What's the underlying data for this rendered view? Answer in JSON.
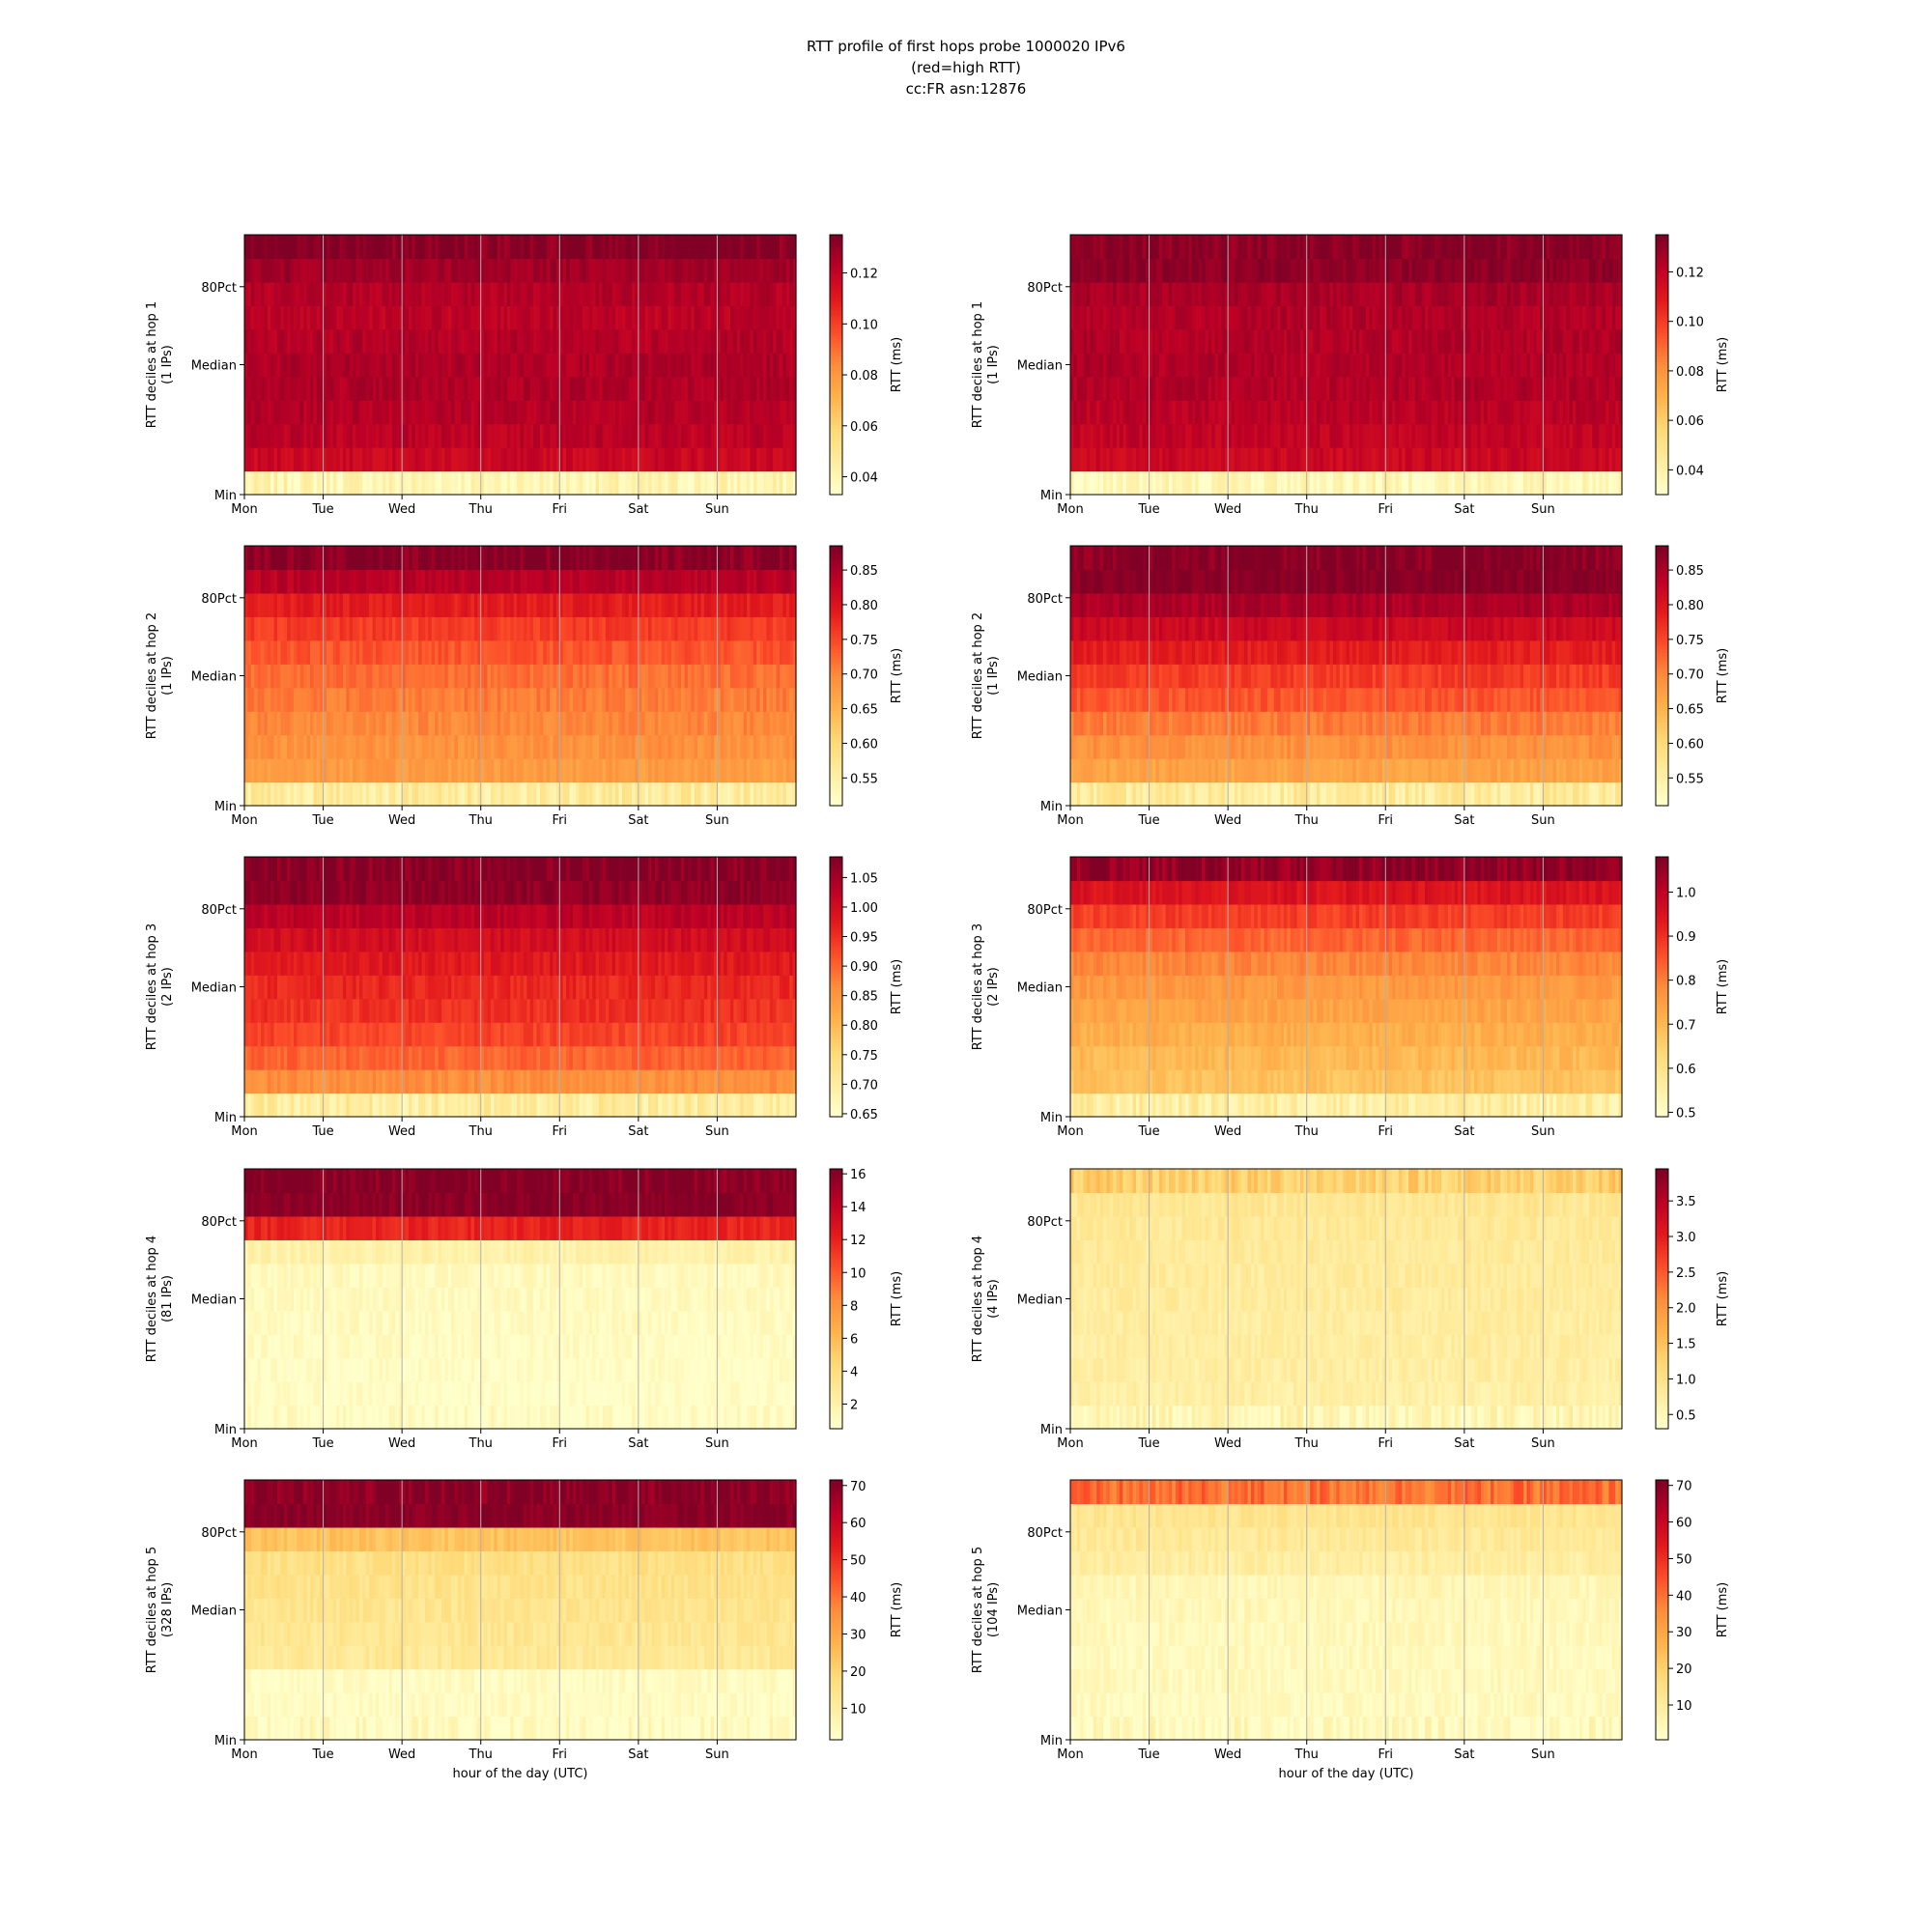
{
  "title": {
    "line1": "RTT profile of first hops probe 1000020 IPv6",
    "line2": "(red=high RTT)",
    "line3": "cc:FR asn:12876"
  },
  "colormap": {
    "name": "YlOrRd",
    "stops": [
      "#ffffcc",
      "#ffeda0",
      "#fed976",
      "#feb24c",
      "#fd8d3c",
      "#fc4e2a",
      "#e31a1c",
      "#bd0026",
      "#800026"
    ]
  },
  "chart_data": [
    {
      "type": "heatmap",
      "hop": 1,
      "ylabel": "RTT deciles at hop 1",
      "ips": "(1 IPs)",
      "xticks": [
        "Mon",
        "Tue",
        "Wed",
        "Thu",
        "Fri",
        "Sat",
        "Sun"
      ],
      "xlabel": "",
      "yticks": [
        "Min",
        "Median",
        "80Pct"
      ],
      "colorbar": {
        "label": "RTT (ms)",
        "vmin": 0.033,
        "vmax": 0.135,
        "ticks": [
          "0.04",
          "0.06",
          "0.08",
          "0.10",
          "0.12"
        ]
      },
      "decile_rtt_ms": [
        0.04,
        0.118,
        0.122,
        0.124,
        0.125,
        0.125,
        0.124,
        0.122,
        0.124,
        0.128,
        0.135
      ]
    },
    {
      "type": "heatmap",
      "hop": 1,
      "ylabel": "RTT deciles at hop 1",
      "ips": "(1 IPs)",
      "xticks": [
        "Mon",
        "Tue",
        "Wed",
        "Thu",
        "Fri",
        "Sat",
        "Sun"
      ],
      "xlabel": "",
      "yticks": [
        "Min",
        "Median",
        "80Pct"
      ],
      "colorbar": {
        "label": "RTT (ms)",
        "vmin": 0.03,
        "vmax": 0.135,
        "ticks": [
          "0.04",
          "0.06",
          "0.08",
          "0.10",
          "0.12"
        ]
      },
      "decile_rtt_ms": [
        0.036,
        0.117,
        0.12,
        0.122,
        0.124,
        0.124,
        0.124,
        0.124,
        0.126,
        0.132,
        0.135
      ]
    },
    {
      "type": "heatmap",
      "hop": 2,
      "ylabel": "RTT deciles at hop 2",
      "ips": "(1 IPs)",
      "xticks": [
        "Mon",
        "Tue",
        "Wed",
        "Thu",
        "Fri",
        "Sat",
        "Sun"
      ],
      "xlabel": "",
      "yticks": [
        "Min",
        "Median",
        "80Pct"
      ],
      "colorbar": {
        "label": "RTT (ms)",
        "vmin": 0.51,
        "vmax": 0.885,
        "ticks": [
          "0.55",
          "0.60",
          "0.65",
          "0.70",
          "0.75",
          "0.80",
          "0.85"
        ]
      },
      "decile_rtt_ms": [
        0.56,
        0.68,
        0.69,
        0.7,
        0.71,
        0.72,
        0.74,
        0.76,
        0.79,
        0.84,
        0.885
      ]
    },
    {
      "type": "heatmap",
      "hop": 2,
      "ylabel": "RTT deciles at hop 2",
      "ips": "(1 IPs)",
      "xticks": [
        "Mon",
        "Tue",
        "Wed",
        "Thu",
        "Fri",
        "Sat",
        "Sun"
      ],
      "xlabel": "",
      "yticks": [
        "Min",
        "Median",
        "80Pct"
      ],
      "colorbar": {
        "label": "RTT (ms)",
        "vmin": 0.51,
        "vmax": 0.885,
        "ticks": [
          "0.55",
          "0.60",
          "0.65",
          "0.70",
          "0.75",
          "0.80",
          "0.85"
        ]
      },
      "decile_rtt_ms": [
        0.56,
        0.67,
        0.69,
        0.71,
        0.74,
        0.76,
        0.79,
        0.82,
        0.85,
        0.88,
        0.885
      ]
    },
    {
      "type": "heatmap",
      "hop": 3,
      "ylabel": "RTT deciles at hop 3",
      "ips": "(2 IPs)",
      "xticks": [
        "Mon",
        "Tue",
        "Wed",
        "Thu",
        "Fri",
        "Sat",
        "Sun"
      ],
      "xlabel": "",
      "yticks": [
        "Min",
        "Median",
        "80Pct"
      ],
      "colorbar": {
        "label": "RTT (ms)",
        "vmin": 0.645,
        "vmax": 1.085,
        "ticks": [
          "0.65",
          "0.70",
          "0.75",
          "0.80",
          "0.85",
          "0.90",
          "0.95",
          "1.00",
          "1.05"
        ]
      },
      "decile_rtt_ms": [
        0.7,
        0.86,
        0.9,
        0.93,
        0.95,
        0.96,
        0.98,
        1.0,
        1.03,
        1.07,
        1.085
      ]
    },
    {
      "type": "heatmap",
      "hop": 3,
      "ylabel": "RTT deciles at hop 3",
      "ips": "(2 IPs)",
      "xticks": [
        "Mon",
        "Tue",
        "Wed",
        "Thu",
        "Fri",
        "Sat",
        "Sun"
      ],
      "xlabel": "",
      "yticks": [
        "Min",
        "Median",
        "80Pct"
      ],
      "colorbar": {
        "label": "RTT (ms)",
        "vmin": 0.49,
        "vmax": 1.08,
        "ticks": [
          "0.5",
          "0.6",
          "0.7",
          "0.8",
          "0.9",
          "1.0"
        ]
      },
      "decile_rtt_ms": [
        0.56,
        0.68,
        0.7,
        0.72,
        0.74,
        0.76,
        0.79,
        0.83,
        0.88,
        0.95,
        1.06
      ]
    },
    {
      "type": "heatmap",
      "hop": 4,
      "ylabel": "RTT deciles at hop 4",
      "ips": "(81 IPs)",
      "xticks": [
        "Mon",
        "Tue",
        "Wed",
        "Thu",
        "Fri",
        "Sat",
        "Sun"
      ],
      "xlabel": "",
      "yticks": [
        "Min",
        "Median",
        "80Pct"
      ],
      "colorbar": {
        "label": "RTT (ms)",
        "vmin": 0.5,
        "vmax": 16.3,
        "ticks": [
          "2",
          "4",
          "6",
          "8",
          "10",
          "12",
          "14",
          "16"
        ]
      },
      "decile_rtt_ms": [
        0.6,
        0.7,
        0.8,
        0.9,
        1.0,
        1.1,
        1.2,
        2.0,
        12.0,
        16.0,
        16.3
      ]
    },
    {
      "type": "heatmap",
      "hop": 4,
      "ylabel": "RTT deciles at hop 4",
      "ips": "(4 IPs)",
      "xticks": [
        "Mon",
        "Tue",
        "Wed",
        "Thu",
        "Fri",
        "Sat",
        "Sun"
      ],
      "xlabel": "",
      "yticks": [
        "Min",
        "Median",
        "80Pct"
      ],
      "colorbar": {
        "label": "RTT (ms)",
        "vmin": 0.3,
        "vmax": 3.95,
        "ticks": [
          "0.5",
          "1.0",
          "1.5",
          "2.0",
          "2.5",
          "3.0",
          "3.5"
        ]
      },
      "decile_rtt_ms": [
        0.55,
        0.7,
        0.72,
        0.74,
        0.76,
        0.78,
        0.8,
        0.82,
        0.85,
        0.9,
        1.3
      ]
    },
    {
      "type": "heatmap",
      "hop": 5,
      "ylabel": "RTT deciles at hop 5",
      "ips": "(328 IPs)",
      "xticks": [
        "Mon",
        "Tue",
        "Wed",
        "Thu",
        "Fri",
        "Sat",
        "Sun"
      ],
      "xlabel": "hour of the day (UTC)",
      "yticks": [
        "Min",
        "Median",
        "80Pct"
      ],
      "colorbar": {
        "label": "RTT (ms)",
        "vmin": 1.5,
        "vmax": 71.5,
        "ticks": [
          "10",
          "20",
          "30",
          "40",
          "50",
          "60",
          "70"
        ]
      },
      "decile_rtt_ms": [
        3.0,
        3.2,
        3.4,
        12.0,
        13.0,
        14.0,
        15.0,
        16.0,
        24.0,
        70.0,
        71.0
      ]
    },
    {
      "type": "heatmap",
      "hop": 5,
      "ylabel": "RTT deciles at hop 5",
      "ips": "(104 IPs)",
      "xticks": [
        "Mon",
        "Tue",
        "Wed",
        "Thu",
        "Fri",
        "Sat",
        "Sun"
      ],
      "xlabel": "hour of the day (UTC)",
      "yticks": [
        "Min",
        "Median",
        "80Pct"
      ],
      "colorbar": {
        "label": "RTT (ms)",
        "vmin": 0.5,
        "vmax": 71.5,
        "ticks": [
          "10",
          "20",
          "30",
          "40",
          "50",
          "60",
          "70"
        ]
      },
      "decile_rtt_ms": [
        3.0,
        3.2,
        3.4,
        3.6,
        4.0,
        4.4,
        5.0,
        9.0,
        11.0,
        13.0,
        40.0
      ]
    }
  ]
}
